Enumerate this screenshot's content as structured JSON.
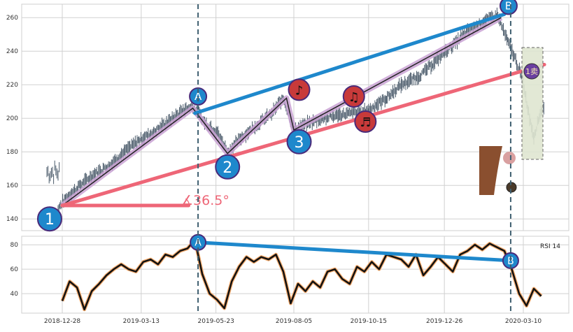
{
  "chart_data": [
    {
      "type": "candlestick",
      "panel": "price",
      "ylim": [
        133,
        268
      ],
      "yticks": [
        140,
        160,
        180,
        200,
        220,
        240,
        260
      ],
      "ytick_labels": [
        "140",
        "160",
        "180",
        "200",
        "220",
        "240",
        "260"
      ],
      "grid": true,
      "close_series": [
        [
          "2018-12-24",
          146
        ],
        [
          "2018-12-31",
          152
        ],
        [
          "2019-01-14",
          160
        ],
        [
          "2019-01-28",
          167
        ],
        [
          "2019-02-11",
          172
        ],
        [
          "2019-02-25",
          180
        ],
        [
          "2019-03-11",
          187
        ],
        [
          "2019-03-25",
          192
        ],
        [
          "2019-04-08",
          198
        ],
        [
          "2019-04-22",
          205
        ],
        [
          "2019-05-01",
          207
        ],
        [
          "2019-05-13",
          197
        ],
        [
          "2019-05-24",
          192
        ],
        [
          "2019-06-03",
          180
        ],
        [
          "2019-06-17",
          189
        ],
        [
          "2019-07-01",
          196
        ],
        [
          "2019-07-15",
          203
        ],
        [
          "2019-07-26",
          212
        ],
        [
          "2019-08-05",
          193
        ],
        [
          "2019-08-19",
          197
        ],
        [
          "2019-09-02",
          200
        ],
        [
          "2019-09-16",
          202
        ],
        [
          "2019-09-30",
          203
        ],
        [
          "2019-10-15",
          205
        ],
        [
          "2019-11-01",
          212
        ],
        [
          "2019-11-15",
          220
        ],
        [
          "2019-12-02",
          225
        ],
        [
          "2019-12-16",
          233
        ],
        [
          "2020-01-02",
          243
        ],
        [
          "2020-01-17",
          252
        ],
        [
          "2020-02-03",
          258
        ],
        [
          "2020-02-14",
          262
        ],
        [
          "2020-02-24",
          246
        ],
        [
          "2020-03-02",
          236
        ],
        [
          "2020-03-09",
          224
        ],
        [
          "2020-03-16",
          200
        ],
        [
          "2020-03-20",
          189
        ],
        [
          "2020-03-26",
          203
        ],
        [
          "2020-03-30",
          208
        ]
      ],
      "zigzag": [
        [
          "2018-12-28",
          148
        ],
        [
          "2019-05-01",
          206
        ],
        [
          "2019-06-03",
          179
        ],
        [
          "2019-07-29",
          212
        ],
        [
          "2019-08-05",
          193
        ],
        [
          "2020-02-18",
          260
        ]
      ],
      "trendlines": [
        {
          "name": "upper",
          "color": "#1e88cc",
          "points": [
            [
              "2019-05-03",
              203
            ],
            [
              "2020-02-21",
              262
            ]
          ]
        },
        {
          "name": "lower",
          "color": "#ee6677",
          "points": [
            [
              "2018-12-28",
              148
            ],
            [
              "2020-03-30",
              232
            ]
          ]
        },
        {
          "name": "angle_base",
          "color": "#ee6677",
          "points": [
            [
              "2018-12-28",
              148
            ],
            [
              "2019-04-27",
              148
            ]
          ]
        }
      ],
      "angle_annotation": "∡36.5°",
      "markers": [
        {
          "label": "1",
          "date": "2018-12-16",
          "value": 140
        },
        {
          "label": "2",
          "date": "2019-06-03",
          "value": 171
        },
        {
          "label": "3",
          "date": "2019-08-10",
          "value": 186
        },
        {
          "label": "A",
          "date": "2019-05-06",
          "value": 213
        },
        {
          "label": "B",
          "date": "2020-02-25",
          "value": 267
        }
      ],
      "note_markers": [
        {
          "symbol": "♪",
          "date": "2019-08-10",
          "value": 217
        },
        {
          "symbol": "♫",
          "date": "2019-10-01",
          "value": 213
        },
        {
          "symbol": "♬",
          "date": "2019-10-12",
          "value": 198
        }
      ],
      "sell_marker": {
        "label": "1卖",
        "date": "2020-03-12",
        "value": 228
      },
      "vertical_lines": [
        "2019-05-06",
        "2020-02-27"
      ]
    },
    {
      "type": "line",
      "panel": "rsi",
      "legend": "RSI 14",
      "ylim": [
        24,
        87
      ],
      "yticks": [
        40,
        60,
        80
      ],
      "ytick_labels": [
        "40",
        "60",
        "80"
      ],
      "grid": true,
      "x": [
        "2018-12-28",
        "2019-01-04",
        "2019-01-11",
        "2019-01-18",
        "2019-01-25",
        "2019-02-01",
        "2019-02-08",
        "2019-02-15",
        "2019-02-22",
        "2019-03-01",
        "2019-03-08",
        "2019-03-15",
        "2019-03-22",
        "2019-03-29",
        "2019-04-05",
        "2019-04-12",
        "2019-04-19",
        "2019-04-26",
        "2019-05-03",
        "2019-05-10",
        "2019-05-17",
        "2019-05-24",
        "2019-05-31",
        "2019-06-07",
        "2019-06-14",
        "2019-06-21",
        "2019-06-28",
        "2019-07-05",
        "2019-07-12",
        "2019-07-19",
        "2019-07-26",
        "2019-08-02",
        "2019-08-09",
        "2019-08-16",
        "2019-08-23",
        "2019-08-30",
        "2019-09-06",
        "2019-09-13",
        "2019-09-20",
        "2019-09-27",
        "2019-10-04",
        "2019-10-11",
        "2019-10-18",
        "2019-10-25",
        "2019-11-01",
        "2019-11-08",
        "2019-11-15",
        "2019-11-22",
        "2019-11-29",
        "2019-12-06",
        "2019-12-13",
        "2019-12-20",
        "2019-12-27",
        "2020-01-03",
        "2020-01-10",
        "2020-01-17",
        "2020-01-24",
        "2020-01-31",
        "2020-02-07",
        "2020-02-14",
        "2020-02-21",
        "2020-02-28",
        "2020-03-06",
        "2020-03-13",
        "2020-03-20",
        "2020-03-27"
      ],
      "values": [
        34,
        50,
        45,
        27,
        42,
        48,
        55,
        60,
        64,
        60,
        58,
        66,
        68,
        64,
        72,
        70,
        75,
        77,
        84,
        56,
        40,
        35,
        28,
        50,
        62,
        70,
        66,
        70,
        68,
        72,
        58,
        32,
        48,
        42,
        50,
        45,
        58,
        60,
        52,
        48,
        62,
        58,
        66,
        60,
        72,
        70,
        68,
        62,
        72,
        55,
        62,
        70,
        64,
        58,
        72,
        75,
        80,
        76,
        81,
        78,
        75,
        60,
        40,
        30,
        44,
        38
      ],
      "trendline": {
        "color": "#1e88cc",
        "points": [
          [
            "2019-05-06",
            82
          ],
          [
            "2020-02-27",
            67
          ]
        ]
      },
      "markers": [
        {
          "label": "A",
          "date": "2019-05-06",
          "value": 82
        },
        {
          "label": "B",
          "date": "2020-02-27",
          "value": 67
        }
      ]
    }
  ],
  "x_axis": {
    "ticks": [
      "2018-12-28",
      "2019-03-13",
      "2019-05-23",
      "2019-08-05",
      "2019-10-15",
      "2019-12-26",
      "2020-03-10"
    ]
  },
  "colors": {
    "candle": "#4a5a6a",
    "zigzag_halo": "#c9a2d4",
    "zigzag_line": "#222222",
    "marker_fill": "#1e88cc",
    "marker_ring": "#4a2a7a",
    "note_fill": "#c83a3a",
    "rsi_line": "#111111",
    "rsi_halo": "#f4a96a",
    "vline": "#3f5f70",
    "sell_box": "#dfe6d1",
    "sell_fill": "#6a3fa0"
  }
}
